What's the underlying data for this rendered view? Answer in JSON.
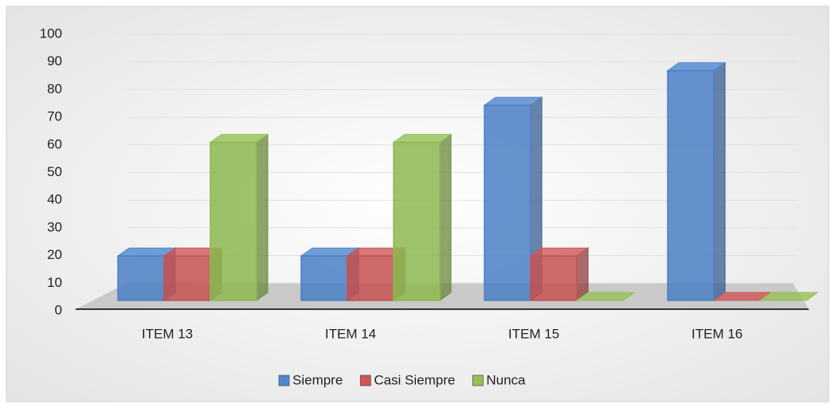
{
  "chart_data": {
    "type": "bar3d",
    "categories": [
      "ITEM 13",
      "ITEM 14",
      "ITEM 15",
      "ITEM 16"
    ],
    "series": [
      {
        "name": "Siempre",
        "color": "#4f86d0",
        "values": [
          18,
          18,
          79,
          93
        ]
      },
      {
        "name": "Casi Siempre",
        "color": "#d05656",
        "values": [
          18,
          18,
          18,
          0
        ]
      },
      {
        "name": "Nunca",
        "color": "#94c253",
        "values": [
          64,
          64,
          0,
          0
        ]
      }
    ],
    "ylim": [
      0,
      100
    ],
    "yticks": [
      0,
      10,
      20,
      30,
      40,
      50,
      60,
      70,
      80,
      90,
      100
    ],
    "grid": true
  }
}
